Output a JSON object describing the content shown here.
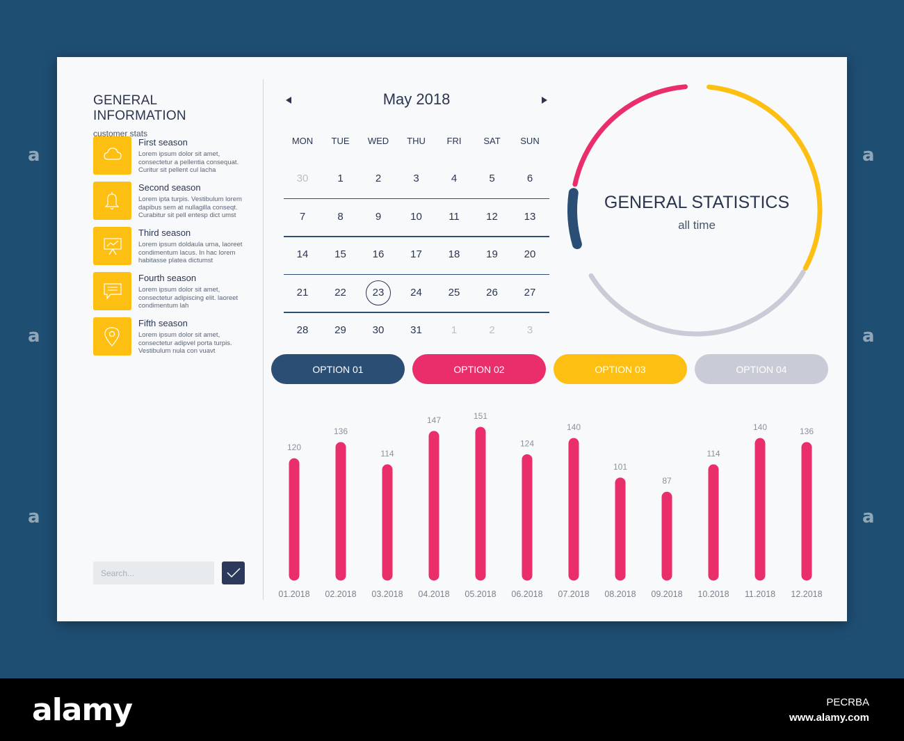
{
  "background": {
    "color": "#1f4e73"
  },
  "colors": {
    "navy": "#2b4f74",
    "pink": "#ea2d6b",
    "yellow": "#fdbf12",
    "gray": "#c9ccd6",
    "text": "#2b3550"
  },
  "info": {
    "title": "GENERAL INFORMATION",
    "subtitle": "customer stats",
    "seasons": [
      {
        "title": "First season",
        "icon": "cloud-icon",
        "lines": [
          "Lorem ipsum dolor sit amet,",
          "consectetur a pellentia consequat.",
          "Curitur sit pellent cul lacha"
        ]
      },
      {
        "title": "Second season",
        "icon": "bell-icon",
        "lines": [
          "Lorem ipta turpis. Vestibulum lorem",
          "dapibus sem at nullagilla conseqt.",
          "Curabitur sit pell entesp dict umst"
        ]
      },
      {
        "title": "Third season",
        "icon": "presentation-icon",
        "lines": [
          "Lorem ipsum doldaula urna, laoreet",
          "condimentum lacus. In hac lorem",
          "habitasse platea dictumst"
        ]
      },
      {
        "title": "Fourth season",
        "icon": "chat-icon",
        "lines": [
          "Lorem ipsum dolor sit amet,",
          "consectetur adipiscing elit. laoreet",
          "condimentum lah"
        ]
      },
      {
        "title": "Fifth season",
        "icon": "location-pin-icon",
        "lines": [
          "Lorem ipsum dolor sit amet,",
          "consectetur adipvel porta turpis.",
          "Vestibulum nula con vuavt"
        ]
      }
    ],
    "search_placeholder": "Search..."
  },
  "calendar": {
    "month": "May 2018",
    "weekdays": [
      "MON",
      "TUE",
      "WED",
      "THU",
      "FRI",
      "SAT",
      "SUN"
    ],
    "weeks": [
      [
        "30",
        "1",
        "2",
        "3",
        "4",
        "5",
        "6"
      ],
      [
        "7",
        "8",
        "9",
        "10",
        "11",
        "12",
        "13"
      ],
      [
        "14",
        "15",
        "16",
        "17",
        "18",
        "19",
        "20"
      ],
      [
        "21",
        "22",
        "23",
        "24",
        "25",
        "26",
        "27"
      ],
      [
        "28",
        "29",
        "30",
        "31",
        "1",
        "2",
        "3"
      ]
    ],
    "muted_first_week": [
      "30"
    ],
    "muted_last_week": [
      "1",
      "2",
      "3"
    ],
    "selected": "23"
  },
  "stats": {
    "title": "GENERAL STATISTICS",
    "subtitle": "all time"
  },
  "options": [
    "OPTION 01",
    "OPTION 02",
    "OPTION 03",
    "OPTION 04"
  ],
  "chart_data": {
    "type": "bar",
    "categories": [
      "01.2018",
      "02.2018",
      "03.2018",
      "04.2018",
      "05.2018",
      "06.2018",
      "07.2018",
      "08.2018",
      "09.2018",
      "10.2018",
      "11.2018",
      "12.2018"
    ],
    "values": [
      120,
      136,
      114,
      147,
      151,
      124,
      140,
      101,
      87,
      114,
      140,
      136
    ],
    "color": "#ea2d6b",
    "title": "",
    "xlabel": "",
    "ylabel": "",
    "ylim": [
      0,
      151
    ]
  },
  "watermark": {
    "brand": "alamy",
    "url": "www.alamy.com",
    "image_id": "PECRBA"
  }
}
